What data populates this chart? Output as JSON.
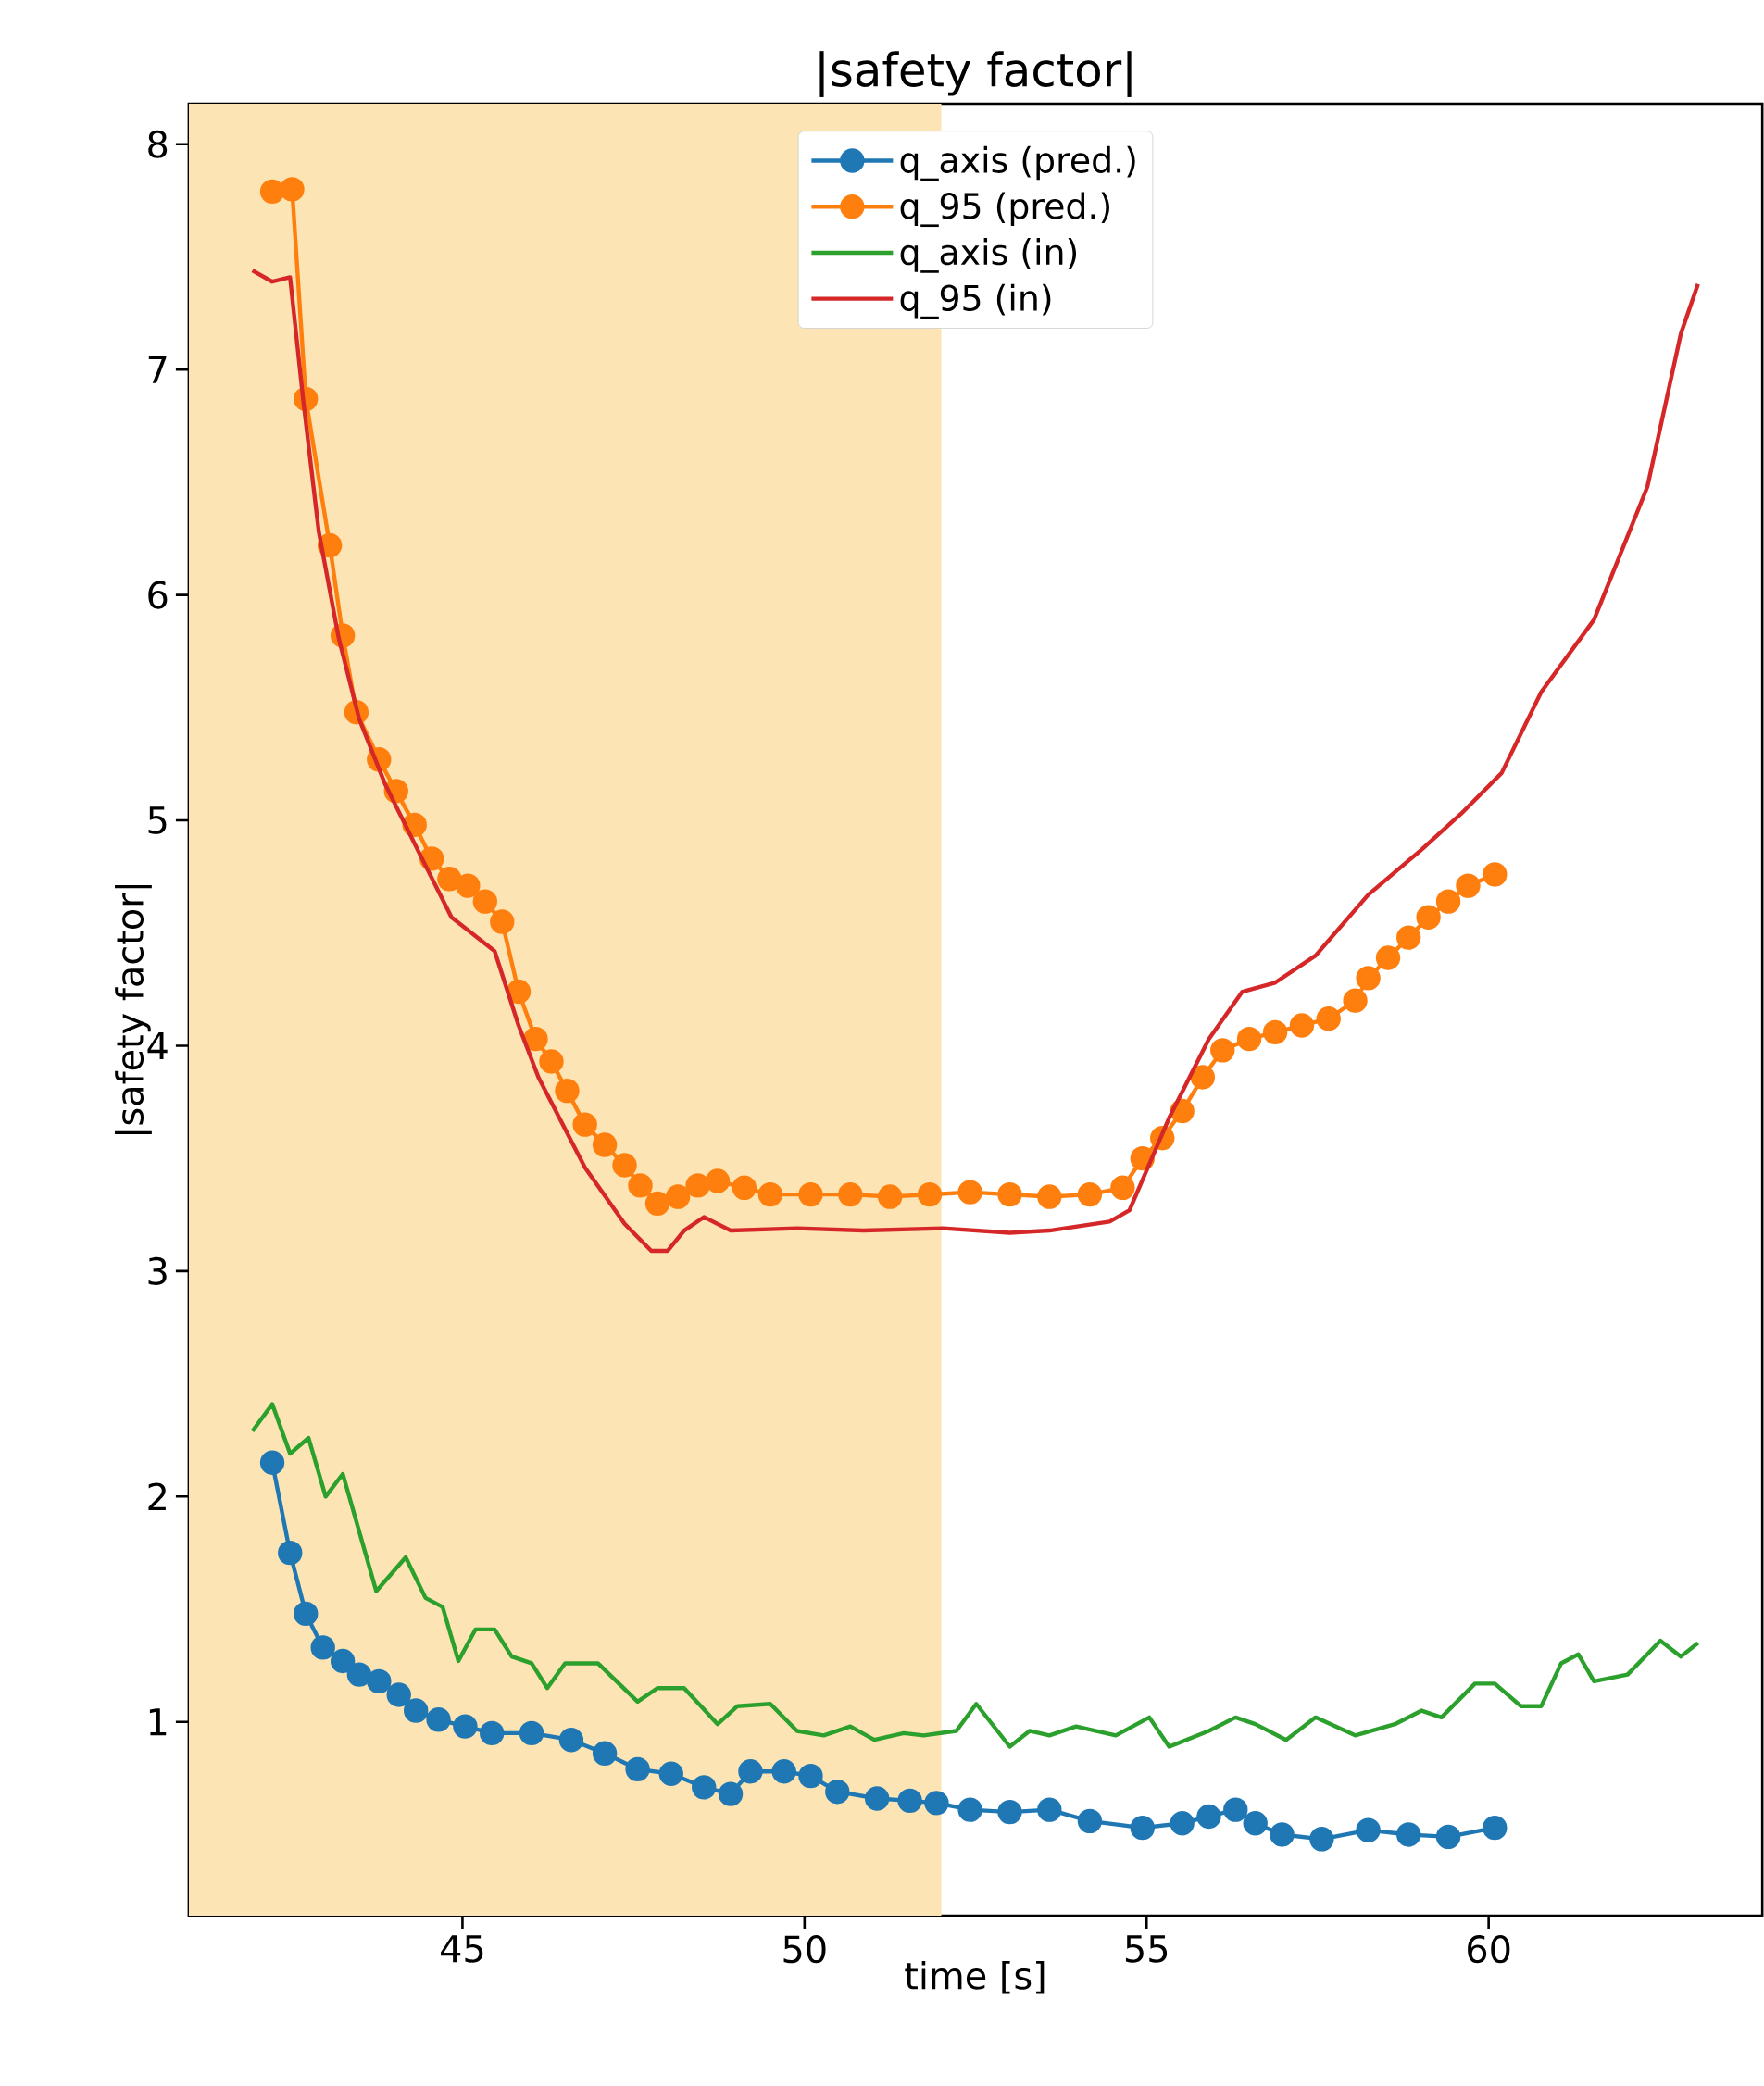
{
  "chart_data": {
    "type": "line",
    "title": "|safety factor|",
    "xlabel": "time [s]",
    "ylabel": "|safety factor|",
    "xlim": [
      41.0,
      64.0
    ],
    "ylim": [
      0.14,
      8.18
    ],
    "xticks": [
      45,
      50,
      55,
      60
    ],
    "yticks": [
      1,
      2,
      3,
      4,
      5,
      6,
      7,
      8
    ],
    "grid": false,
    "legend": "top",
    "bands": [
      {
        "axis": "x",
        "from": 41.0,
        "to": 52.0,
        "color": "#fde4b4"
      }
    ],
    "series": [
      {
        "name": "q_axis (pred.)",
        "color": "#1f77b4",
        "marker": "circle",
        "x": [
          42.22,
          42.48,
          42.71,
          42.96,
          43.25,
          43.49,
          43.78,
          44.07,
          44.32,
          44.65,
          45.04,
          45.43,
          46.01,
          46.59,
          47.08,
          47.56,
          48.05,
          48.53,
          48.92,
          49.21,
          49.7,
          50.09,
          50.48,
          51.06,
          51.54,
          51.93,
          52.42,
          53.0,
          53.58,
          54.17,
          54.94,
          55.52,
          55.91,
          56.3,
          56.59,
          56.98,
          57.56,
          58.24,
          58.83,
          59.41,
          60.09
        ],
        "values": [
          2.15,
          1.75,
          1.48,
          1.33,
          1.27,
          1.21,
          1.18,
          1.12,
          1.05,
          1.01,
          0.98,
          0.95,
          0.95,
          0.92,
          0.86,
          0.79,
          0.77,
          0.71,
          0.68,
          0.78,
          0.78,
          0.76,
          0.69,
          0.66,
          0.65,
          0.64,
          0.61,
          0.6,
          0.61,
          0.56,
          0.53,
          0.55,
          0.58,
          0.61,
          0.55,
          0.5,
          0.48,
          0.52,
          0.5,
          0.49,
          0.53
        ]
      },
      {
        "name": "q_95 (pred.)",
        "color": "#ff7f0e",
        "marker": "circle",
        "x": [
          42.22,
          42.51,
          42.71,
          43.06,
          43.25,
          43.45,
          43.78,
          44.03,
          44.3,
          44.55,
          44.81,
          45.08,
          45.33,
          45.58,
          45.82,
          46.07,
          46.3,
          46.53,
          46.79,
          47.08,
          47.37,
          47.6,
          47.85,
          48.15,
          48.44,
          48.73,
          49.12,
          49.5,
          50.09,
          50.67,
          51.25,
          51.83,
          52.42,
          53.0,
          53.58,
          54.17,
          54.65,
          54.94,
          55.23,
          55.52,
          55.82,
          56.11,
          56.5,
          56.88,
          57.27,
          57.66,
          58.05,
          58.24,
          58.53,
          58.83,
          59.12,
          59.41,
          59.7,
          60.09
        ],
        "values": [
          7.79,
          7.8,
          6.87,
          6.22,
          5.82,
          5.48,
          5.27,
          5.13,
          4.98,
          4.83,
          4.74,
          4.71,
          4.64,
          4.55,
          4.24,
          4.03,
          3.93,
          3.8,
          3.65,
          3.56,
          3.47,
          3.38,
          3.3,
          3.33,
          3.38,
          3.4,
          3.37,
          3.34,
          3.34,
          3.34,
          3.33,
          3.34,
          3.35,
          3.34,
          3.33,
          3.34,
          3.37,
          3.5,
          3.59,
          3.71,
          3.86,
          3.98,
          4.03,
          4.06,
          4.09,
          4.12,
          4.2,
          4.3,
          4.39,
          4.48,
          4.57,
          4.64,
          4.71,
          4.76
        ]
      },
      {
        "name": "q_axis (in)",
        "color": "#2ca02c",
        "marker": "none",
        "x": [
          41.93,
          42.22,
          42.48,
          42.75,
          43.0,
          43.25,
          43.74,
          44.17,
          44.46,
          44.71,
          44.94,
          45.19,
          45.47,
          45.72,
          46.01,
          46.24,
          46.5,
          46.98,
          47.56,
          47.85,
          48.24,
          48.73,
          49.02,
          49.5,
          49.89,
          50.28,
          50.67,
          51.02,
          51.45,
          51.74,
          52.22,
          52.51,
          53.0,
          53.29,
          53.58,
          53.97,
          54.55,
          55.04,
          55.33,
          55.91,
          56.3,
          56.59,
          57.04,
          57.47,
          58.05,
          58.63,
          59.02,
          59.31,
          59.8,
          60.09,
          60.47,
          60.77,
          61.06,
          61.31,
          61.54,
          62.03,
          62.51,
          62.81,
          63.06
        ],
        "values": [
          2.29,
          2.41,
          2.19,
          2.26,
          2.0,
          2.1,
          1.58,
          1.73,
          1.55,
          1.51,
          1.27,
          1.41,
          1.41,
          1.29,
          1.26,
          1.15,
          1.26,
          1.26,
          1.09,
          1.15,
          1.15,
          0.99,
          1.07,
          1.08,
          0.96,
          0.94,
          0.98,
          0.92,
          0.95,
          0.94,
          0.96,
          1.08,
          0.89,
          0.96,
          0.94,
          0.98,
          0.94,
          1.02,
          0.89,
          0.96,
          1.02,
          0.99,
          0.92,
          1.02,
          0.94,
          0.99,
          1.05,
          1.02,
          1.17,
          1.17,
          1.07,
          1.07,
          1.26,
          1.3,
          1.18,
          1.21,
          1.36,
          1.29,
          1.35
        ]
      },
      {
        "name": "q_95 (in)",
        "color": "#d62728",
        "marker": "none",
        "x": [
          41.93,
          42.22,
          42.48,
          42.67,
          42.9,
          43.19,
          43.49,
          43.87,
          44.36,
          44.84,
          45.47,
          45.82,
          46.11,
          46.79,
          47.37,
          47.76,
          48.0,
          48.24,
          48.53,
          48.92,
          49.89,
          50.86,
          52.03,
          53.0,
          53.58,
          54.46,
          54.75,
          55.33,
          55.91,
          56.4,
          56.88,
          57.47,
          58.24,
          59.02,
          59.6,
          60.19,
          60.77,
          61.54,
          62.32,
          62.81,
          63.06
        ],
        "values": [
          7.44,
          7.39,
          7.41,
          6.87,
          6.28,
          5.81,
          5.45,
          5.16,
          4.86,
          4.57,
          4.42,
          4.09,
          3.86,
          3.46,
          3.21,
          3.09,
          3.09,
          3.18,
          3.24,
          3.18,
          3.19,
          3.18,
          3.19,
          3.17,
          3.18,
          3.22,
          3.27,
          3.68,
          4.03,
          4.24,
          4.28,
          4.4,
          4.67,
          4.87,
          5.03,
          5.21,
          5.57,
          5.89,
          6.48,
          7.16,
          7.38
        ]
      }
    ]
  }
}
